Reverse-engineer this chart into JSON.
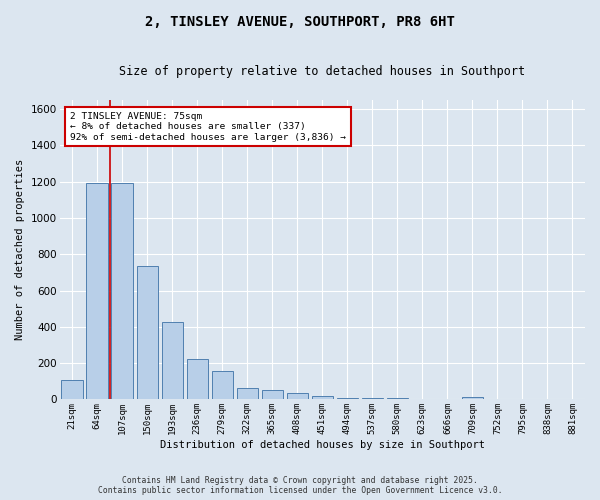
{
  "title": "2, TINSLEY AVENUE, SOUTHPORT, PR8 6HT",
  "subtitle": "Size of property relative to detached houses in Southport",
  "xlabel": "Distribution of detached houses by size in Southport",
  "ylabel": "Number of detached properties",
  "categories": [
    "21sqm",
    "64sqm",
    "107sqm",
    "150sqm",
    "193sqm",
    "236sqm",
    "279sqm",
    "322sqm",
    "365sqm",
    "408sqm",
    "451sqm",
    "494sqm",
    "537sqm",
    "580sqm",
    "623sqm",
    "666sqm",
    "709sqm",
    "752sqm",
    "795sqm",
    "838sqm",
    "881sqm"
  ],
  "values": [
    107,
    1193,
    1193,
    735,
    425,
    220,
    155,
    65,
    50,
    35,
    18,
    10,
    6,
    8,
    3,
    1,
    12,
    0,
    0,
    0,
    0
  ],
  "bar_color": "#b8cfe8",
  "bar_edge_color": "#5080b0",
  "bg_color": "#dce6f0",
  "fig_bg_color": "#dce6f0",
  "grid_color": "#ffffff",
  "red_line_x": 1.5,
  "annotation_text": "2 TINSLEY AVENUE: 75sqm\n← 8% of detached houses are smaller (337)\n92% of semi-detached houses are larger (3,836) →",
  "annotation_box_color": "#ffffff",
  "annotation_border_color": "#cc0000",
  "footer_text": "Contains HM Land Registry data © Crown copyright and database right 2025.\nContains public sector information licensed under the Open Government Licence v3.0.",
  "ylim": [
    0,
    1650
  ],
  "yticks": [
    0,
    200,
    400,
    600,
    800,
    1000,
    1200,
    1400,
    1600
  ]
}
